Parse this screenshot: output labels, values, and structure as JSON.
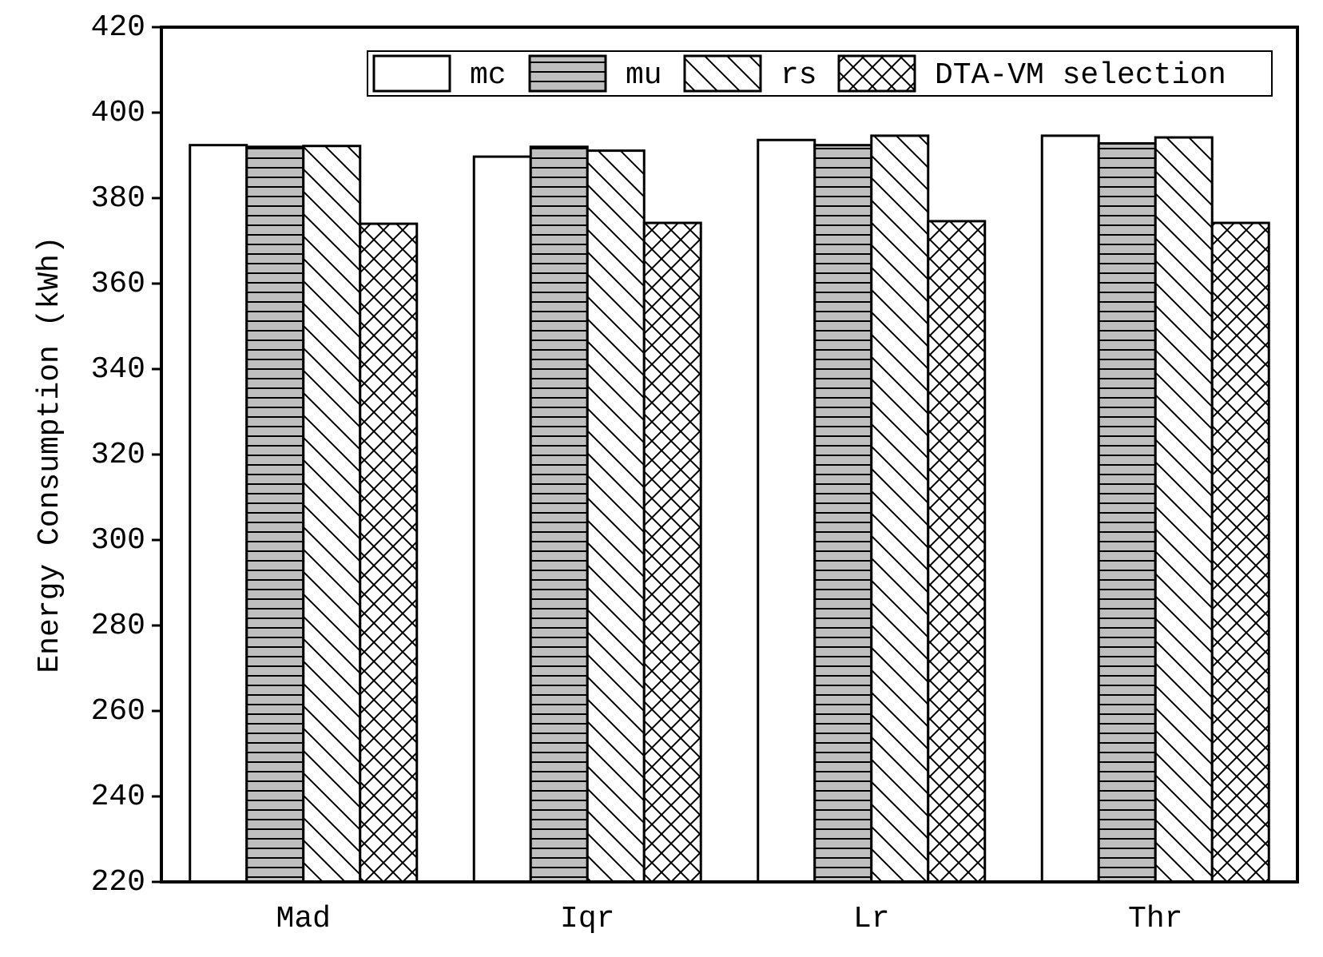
{
  "chart_data": {
    "type": "bar",
    "y_label": "Energy Consumption (kWh)",
    "categories": [
      "Mad",
      "Iqr",
      "Lr",
      "Thr"
    ],
    "series": [
      {
        "name": "mc",
        "color": "#ffffff",
        "hatch": "none",
        "values": [
          392.4,
          389.7,
          393.6,
          394.6
        ]
      },
      {
        "name": "mu",
        "color": "#bfbfbf",
        "hatch": "horizontal",
        "values": [
          392.0,
          392.0,
          392.4,
          392.8
        ]
      },
      {
        "name": "rs",
        "color": "#ffffff",
        "hatch": "diagonal",
        "values": [
          392.2,
          391.1,
          394.6,
          394.2
        ]
      },
      {
        "name": "DTA-VM selection",
        "color": "#ffffff",
        "hatch": "crosshatch",
        "values": [
          374.0,
          374.2,
          374.6,
          374.2
        ]
      }
    ],
    "ylim": [
      220,
      420
    ],
    "yticks": [
      220,
      240,
      260,
      280,
      300,
      320,
      340,
      360,
      380,
      400,
      420
    ],
    "legend": "top-right",
    "grid": false
  }
}
